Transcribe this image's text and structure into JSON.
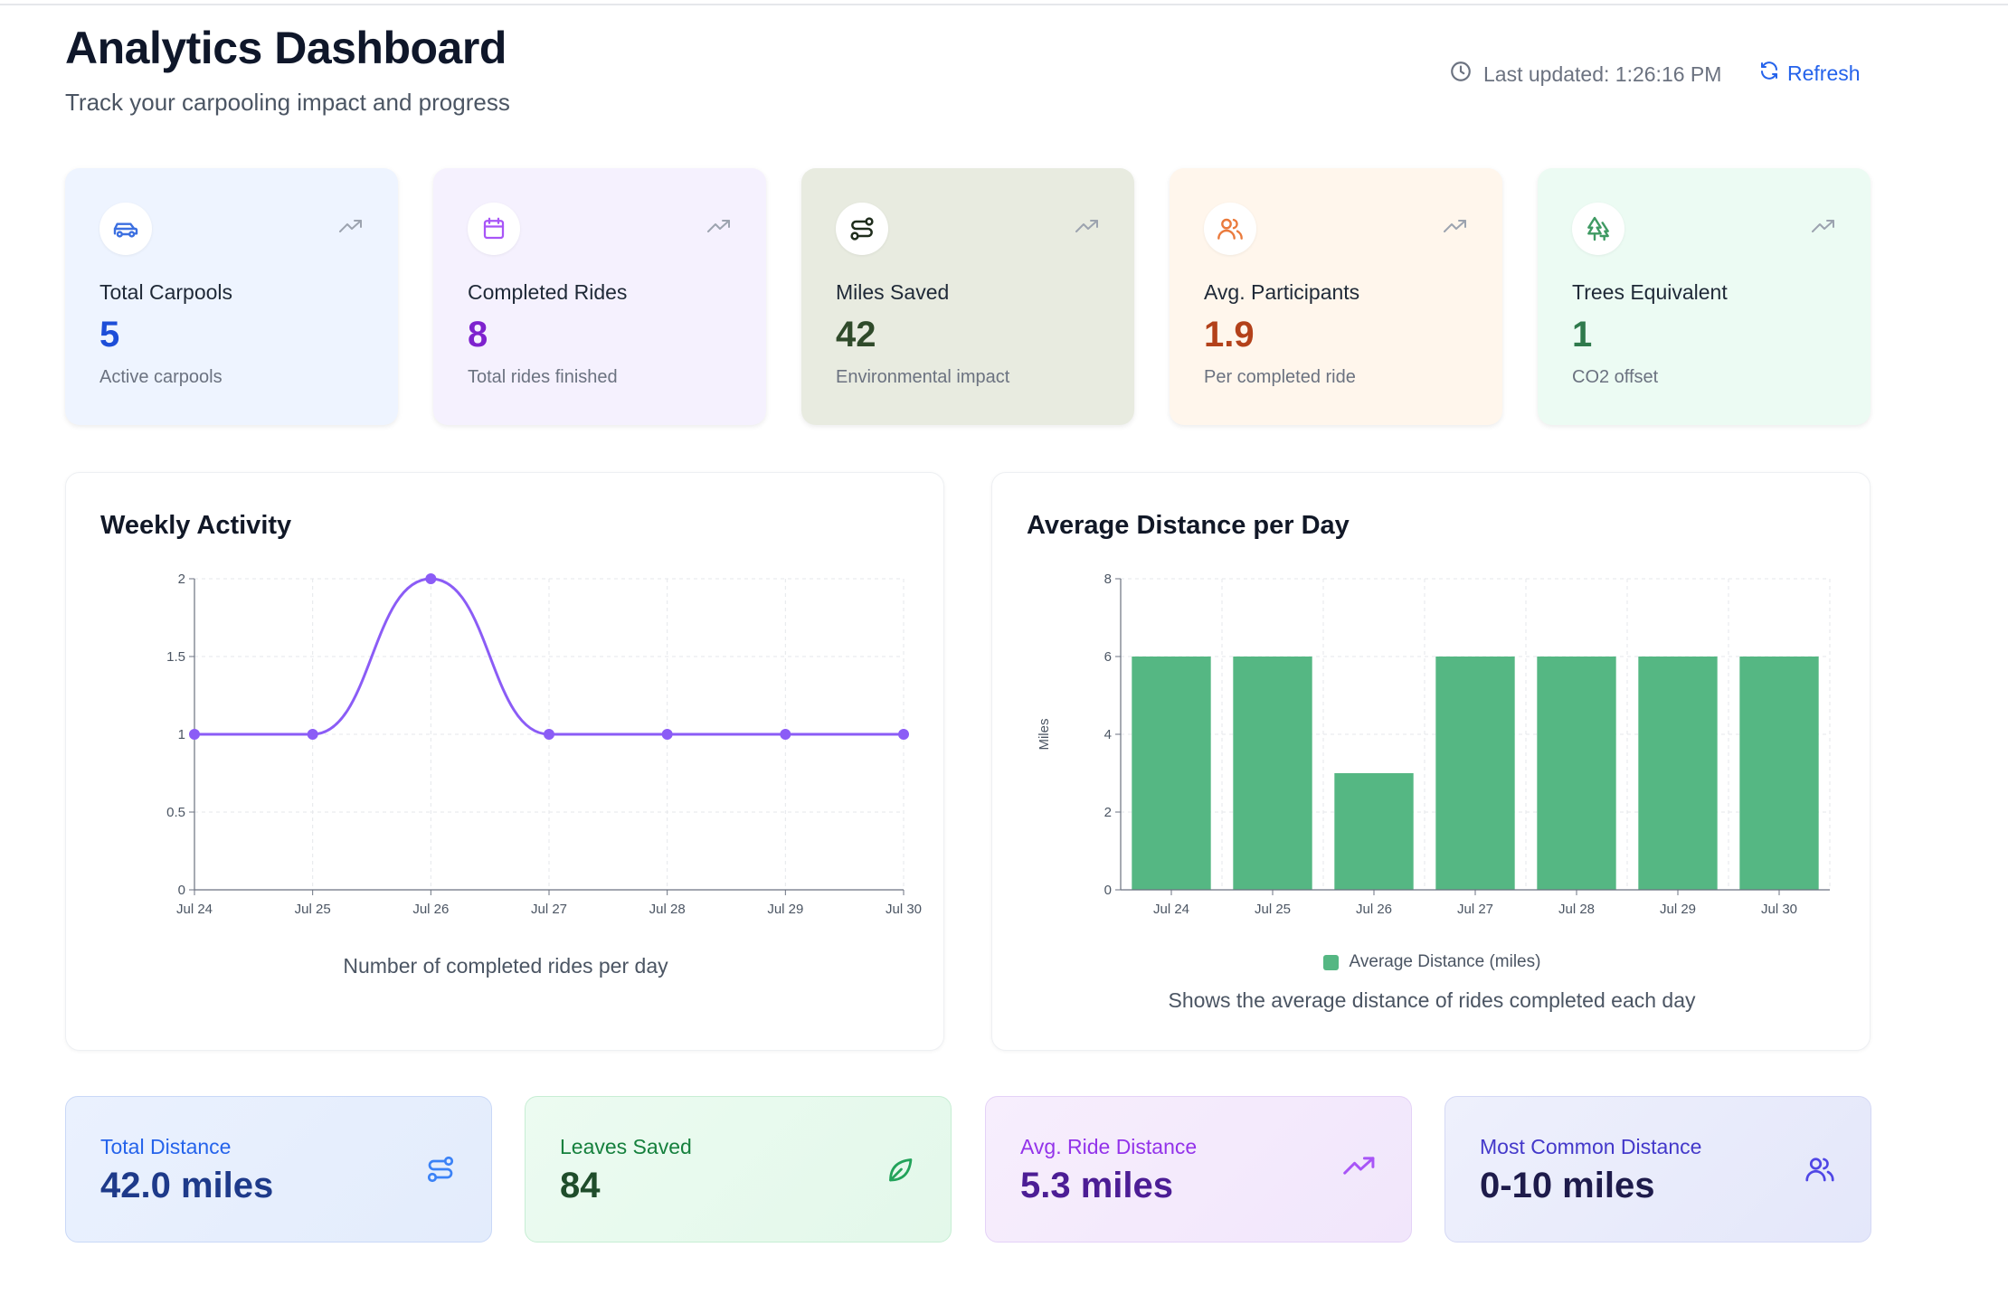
{
  "header": {
    "title": "Analytics Dashboard",
    "subtitle": "Track your carpooling impact and progress",
    "last_updated": "Last updated: 1:26:16 PM",
    "refresh_label": "Refresh"
  },
  "stats": [
    {
      "label": "Total Carpools",
      "value": "5",
      "sub": "Active carpools",
      "icon": "car-icon",
      "bg": "#eef4ff",
      "accent": "#1d4ed8"
    },
    {
      "label": "Completed Rides",
      "value": "8",
      "sub": "Total rides finished",
      "icon": "calendar-icon",
      "bg": "#f5f1fe",
      "accent": "#7e22ce"
    },
    {
      "label": "Miles Saved",
      "value": "42",
      "sub": "Environmental impact",
      "icon": "route-icon",
      "bg": "#e8ebe0",
      "accent": "#2f4a2a"
    },
    {
      "label": "Avg. Participants",
      "value": "1.9",
      "sub": "Per completed ride",
      "icon": "users-icon",
      "bg": "#fff6ec",
      "accent": "#b3411a"
    },
    {
      "label": "Trees Equivalent",
      "value": "1",
      "sub": "CO2 offset",
      "icon": "trees-icon",
      "bg": "#ecfbf3",
      "accent": "#2f7a4c"
    }
  ],
  "weekly": {
    "title": "Weekly Activity",
    "caption": "Number of completed rides per day"
  },
  "distance": {
    "title": "Average Distance per Day",
    "caption": "Shows the average distance of rides completed each day",
    "legend": "Average Distance (miles)",
    "ylabel": "Miles"
  },
  "chart_data": [
    {
      "type": "line",
      "title": "Weekly Activity",
      "categories": [
        "Jul 24",
        "Jul 25",
        "Jul 26",
        "Jul 27",
        "Jul 28",
        "Jul 29",
        "Jul 30"
      ],
      "values": [
        1,
        1,
        2,
        1,
        1,
        1,
        1
      ],
      "yticks": [
        "0",
        "0.5",
        "1",
        "1.5",
        "2"
      ],
      "ylim": [
        0,
        2
      ],
      "color": "#8b5cf6",
      "grid": true
    },
    {
      "type": "bar",
      "title": "Average Distance per Day",
      "categories": [
        "Jul 24",
        "Jul 25",
        "Jul 26",
        "Jul 27",
        "Jul 28",
        "Jul 29",
        "Jul 30"
      ],
      "values": [
        6,
        6,
        3,
        6,
        6,
        6,
        6
      ],
      "yticks": [
        "0",
        "2",
        "4",
        "6",
        "8"
      ],
      "ylim": [
        0,
        8
      ],
      "ylabel": "Miles",
      "series_name": "Average Distance (miles)",
      "color": "#55b783",
      "grid": true,
      "legend": "bottom"
    }
  ],
  "metrics": [
    {
      "label": "Total Distance",
      "value": "42.0 miles",
      "icon": "route-icon",
      "label_color": "#2563eb",
      "value_color": "#1e3a8a",
      "bg": "#e8f0fe",
      "border": "#c9d8f7"
    },
    {
      "label": "Leaves Saved",
      "value": "84",
      "icon": "leaf-icon",
      "label_color": "#15803d",
      "value_color": "#1f4d2b",
      "bg": "#e8f9ee",
      "border": "#c7eed4"
    },
    {
      "label": "Avg. Ride Distance",
      "value": "5.3 miles",
      "icon": "trending-up-icon",
      "label_color": "#9333ea",
      "value_color": "#4c1d95",
      "bg": "#f5ecfd",
      "border": "#e4d2f7"
    },
    {
      "label": "Most Common Distance",
      "value": "0-10 miles",
      "icon": "users-icon",
      "label_color": "#4338ca",
      "value_color": "#1e1b4b",
      "bg": "#eceefc",
      "border": "#d4d8f5"
    }
  ]
}
